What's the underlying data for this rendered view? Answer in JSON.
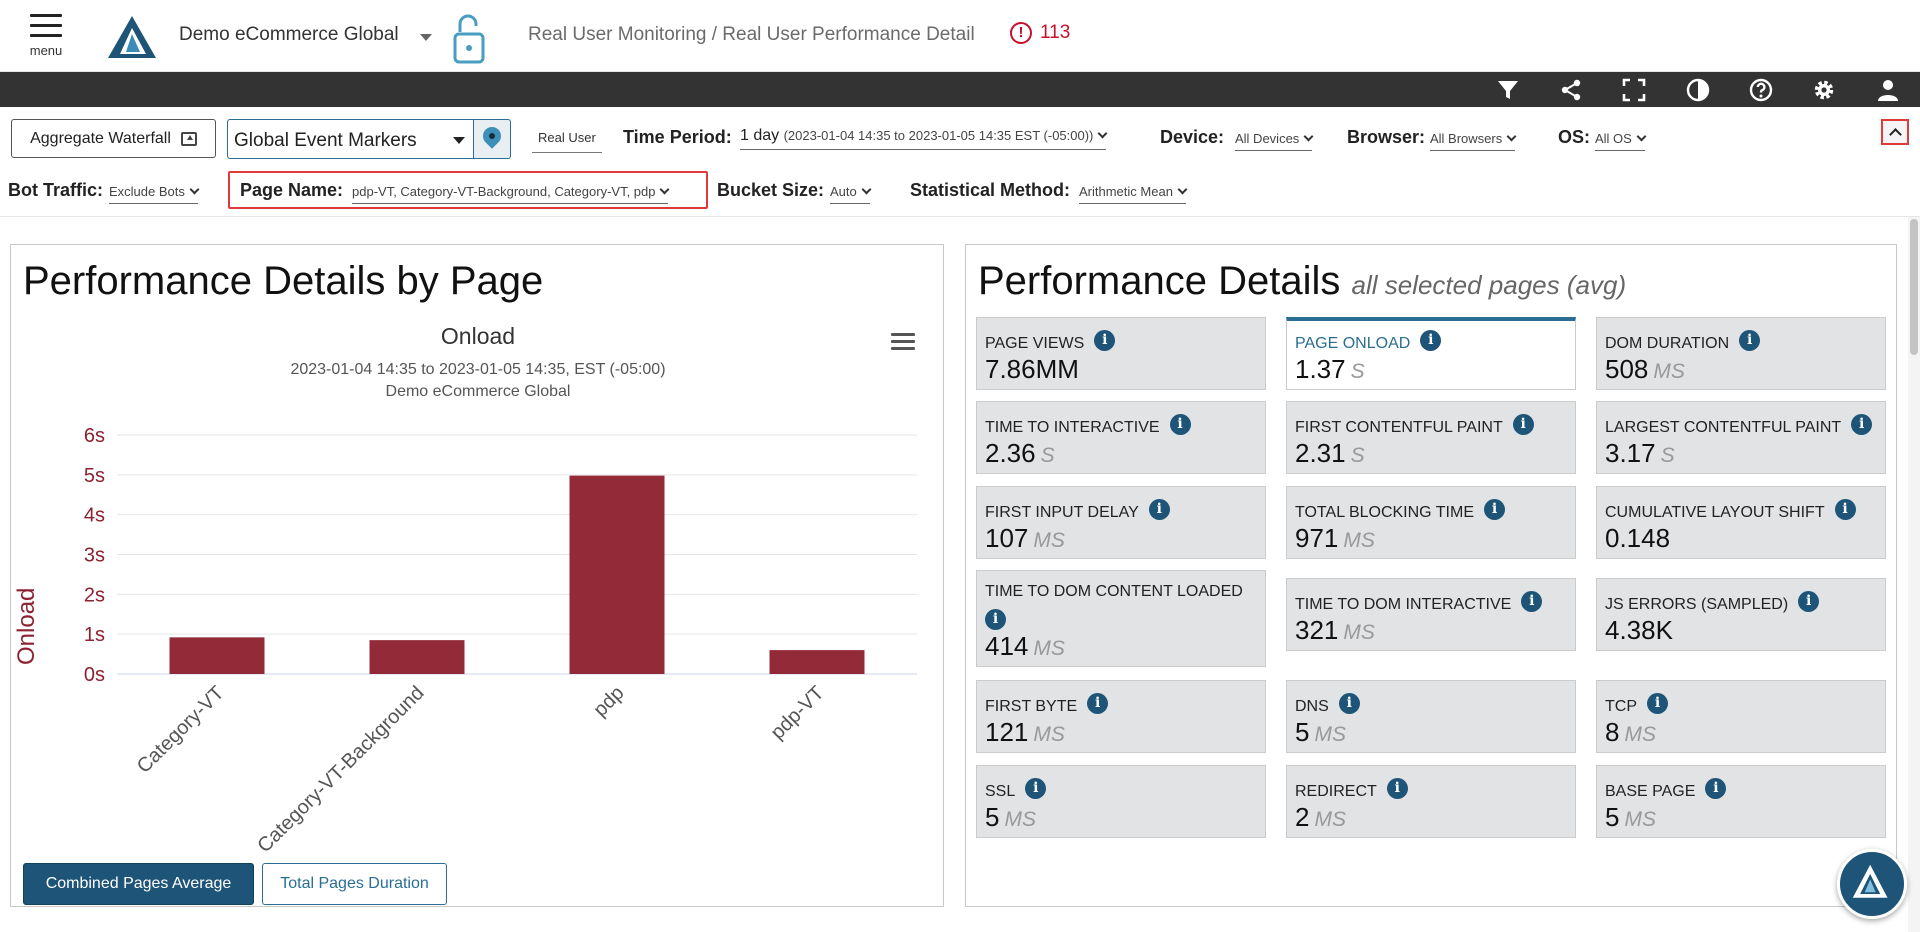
{
  "header": {
    "menu_label": "menu",
    "app_name": "Demo eCommerce Global",
    "breadcrumb": "Real User Monitoring / Real User Performance Detail",
    "alert_count": "113"
  },
  "filters": {
    "aggregate_waterfall": "Aggregate Waterfall",
    "event_markers": "Global Event Markers",
    "real_user": "Real User",
    "time_period_label": "Time Period:",
    "time_period_value": "1 day",
    "time_period_range": "(2023-01-04 14:35 to 2023-01-05 14:35 EST (-05:00))",
    "device_label": "Device:",
    "device_value": "All Devices",
    "browser_label": "Browser:",
    "browser_value": "All Browsers",
    "os_label": "OS:",
    "os_value": "All OS",
    "bot_label": "Bot Traffic:",
    "bot_value": "Exclude Bots",
    "page_name_label": "Page Name:",
    "page_name_value": "pdp-VT, Category-VT-Background, Category-VT, pdp",
    "bucket_label": "Bucket Size:",
    "bucket_value": "Auto",
    "stat_label": "Statistical Method:",
    "stat_value": "Arithmetic Mean"
  },
  "left_panel": {
    "title": "Performance Details by Page",
    "combined_btn": "Combined Pages Average",
    "total_btn": "Total Pages Duration"
  },
  "chart_data": {
    "type": "bar",
    "title": "Onload",
    "subtitle": "2023-01-04 14:35 to 2023-01-05 14:35, EST (-05:00)",
    "subtitle2": "Demo eCommerce Global",
    "ylabel": "Onload",
    "xlabel": "",
    "categories": [
      "Category-VT",
      "Category-VT-Background",
      "pdp",
      "pdp-VT"
    ],
    "values": [
      0.92,
      0.85,
      4.98,
      0.6
    ],
    "ylim": [
      0,
      6
    ],
    "yticks": [
      "0s",
      "1s",
      "2s",
      "3s",
      "4s",
      "5s",
      "6s"
    ],
    "bar_color": "#932a38",
    "grid": true
  },
  "right_panel": {
    "title": "Performance Details",
    "subtitle": "all selected pages (avg)",
    "cards": [
      {
        "label": "PAGE VIEWS",
        "value": "7.86MM",
        "unit": ""
      },
      {
        "label": "PAGE ONLOAD",
        "value": "1.37",
        "unit": "S"
      },
      {
        "label": "DOM DURATION",
        "value": "508",
        "unit": "MS"
      },
      {
        "label": "TIME TO INTERACTIVE",
        "value": "2.36",
        "unit": "S"
      },
      {
        "label": "FIRST CONTENTFUL PAINT",
        "value": "2.31",
        "unit": "S"
      },
      {
        "label": "LARGEST CONTENTFUL PAINT",
        "value": "3.17",
        "unit": "S"
      },
      {
        "label": "FIRST INPUT DELAY",
        "value": "107",
        "unit": "MS"
      },
      {
        "label": "TOTAL BLOCKING TIME",
        "value": "971",
        "unit": "MS"
      },
      {
        "label": "CUMULATIVE LAYOUT SHIFT",
        "value": "0.148",
        "unit": ""
      },
      {
        "label": "TIME TO DOM CONTENT LOADED",
        "value": "414",
        "unit": "MS"
      },
      {
        "label": "TIME TO DOM INTERACTIVE",
        "value": "321",
        "unit": "MS"
      },
      {
        "label": "JS ERRORS (SAMPLED)",
        "value": "4.38K",
        "unit": ""
      },
      {
        "label": "FIRST BYTE",
        "value": "121",
        "unit": "MS"
      },
      {
        "label": "DNS",
        "value": "5",
        "unit": "MS"
      },
      {
        "label": "TCP",
        "value": "8",
        "unit": "MS"
      },
      {
        "label": "SSL",
        "value": "5",
        "unit": "MS"
      },
      {
        "label": "REDIRECT",
        "value": "2",
        "unit": "MS"
      },
      {
        "label": "BASE PAGE",
        "value": "5",
        "unit": "MS"
      }
    ]
  },
  "icons": {
    "toolbar": [
      "filter-icon",
      "share-icon",
      "fullscreen-icon",
      "contrast-icon",
      "help-icon",
      "settings-icon",
      "user-icon"
    ]
  },
  "colors": {
    "accent": "#1d5477",
    "alert": "#c8102e",
    "bar": "#932a38"
  }
}
